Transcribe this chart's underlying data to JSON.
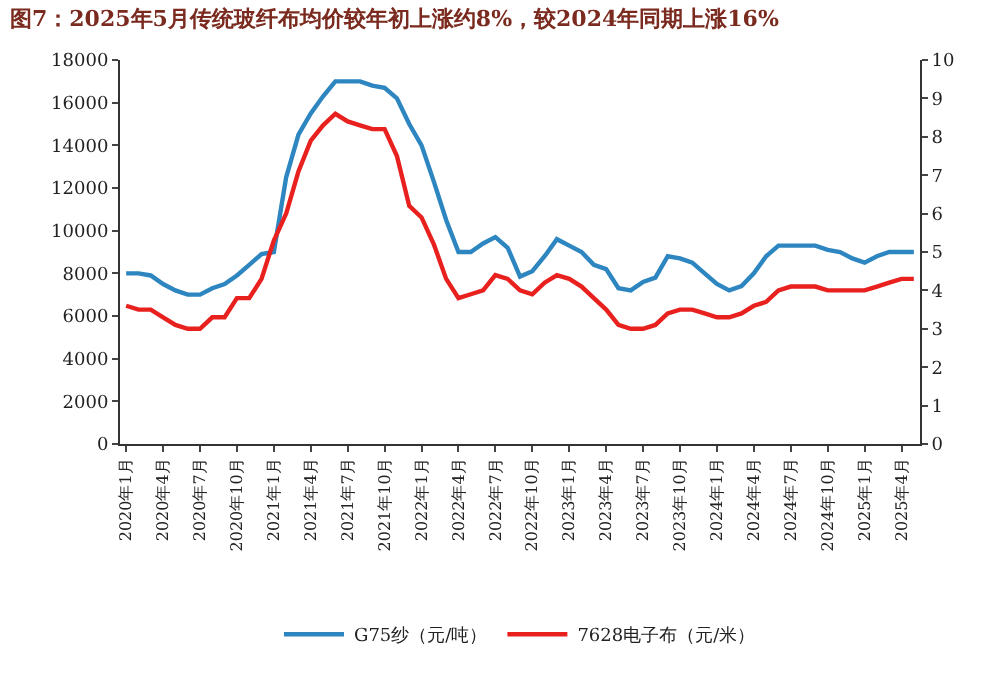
{
  "chart_data": {
    "type": "line",
    "title": "图7：2025年5月传统玻纤布均价较年初上涨约8%，较2024年同期上涨16%",
    "categories": [
      "2020年1月",
      null,
      null,
      "2020年4月",
      null,
      null,
      "2020年7月",
      null,
      null,
      "2020年10月",
      null,
      null,
      "2021年1月",
      null,
      null,
      "2021年4月",
      null,
      null,
      "2021年7月",
      null,
      null,
      "2021年10月",
      null,
      null,
      "2022年1月",
      null,
      null,
      "2022年4月",
      null,
      null,
      "2022年7月",
      null,
      null,
      "2022年10月",
      null,
      null,
      "2023年1月",
      null,
      null,
      "2023年4月",
      null,
      null,
      "2023年7月",
      null,
      null,
      "2023年10月",
      null,
      null,
      "2024年1月",
      null,
      null,
      "2024年4月",
      null,
      null,
      "2024年7月",
      null,
      null,
      "2024年10月",
      null,
      null,
      "2025年1月",
      null,
      null,
      "2025年4月",
      null
    ],
    "series": [
      {
        "name": "G75纱（元/吨）",
        "color": "#2e86c1",
        "values": [
          8000,
          8000,
          7900,
          7500,
          7200,
          7000,
          7000,
          7300,
          7500,
          7900,
          8400,
          8900,
          9000,
          12500,
          14500,
          15500,
          16300,
          17000,
          17000,
          17000,
          16800,
          16700,
          16200,
          15000,
          14000,
          12300,
          10500,
          9000,
          9000,
          9400,
          9700,
          9200,
          7850,
          8100,
          8800,
          9600,
          9300,
          9000,
          8400,
          8200,
          7300,
          7200,
          7600,
          7800,
          8800,
          8700,
          8500,
          8000,
          7500,
          7200,
          7400,
          8000,
          8800,
          9300,
          9300,
          9300,
          9300,
          9100,
          9000,
          8700,
          8500,
          8800,
          9000,
          9000,
          9000
        ]
      },
      {
        "name": "7628电子布（元/米）",
        "color": "#e8201e",
        "axis": "y2",
        "values": [
          3.6,
          3.5,
          3.5,
          3.3,
          3.1,
          3.0,
          3.0,
          3.3,
          3.3,
          3.8,
          3.8,
          4.3,
          5.3,
          6.0,
          7.1,
          7.9,
          8.3,
          8.6,
          8.4,
          8.3,
          8.2,
          8.2,
          7.5,
          6.2,
          5.9,
          5.2,
          4.3,
          3.8,
          3.9,
          4.0,
          4.4,
          4.3,
          4.0,
          3.9,
          4.2,
          4.4,
          4.3,
          4.1,
          3.8,
          3.5,
          3.1,
          3.0,
          3.0,
          3.1,
          3.4,
          3.5,
          3.5,
          3.4,
          3.3,
          3.3,
          3.4,
          3.6,
          3.7,
          4.0,
          4.1,
          4.1,
          4.1,
          4.0,
          4.0,
          4.0,
          4.0,
          4.1,
          4.2,
          4.3,
          4.3
        ]
      }
    ],
    "ylim": [
      0,
      18000
    ],
    "yticks": [
      0,
      2000,
      4000,
      6000,
      8000,
      10000,
      12000,
      14000,
      16000,
      18000
    ],
    "y2lim": [
      0,
      10
    ],
    "y2ticks": [
      0,
      1,
      2,
      3,
      4,
      5,
      6,
      7,
      8,
      9,
      10
    ],
    "legend": "bottom",
    "marker": "none",
    "line_style": "solid"
  }
}
